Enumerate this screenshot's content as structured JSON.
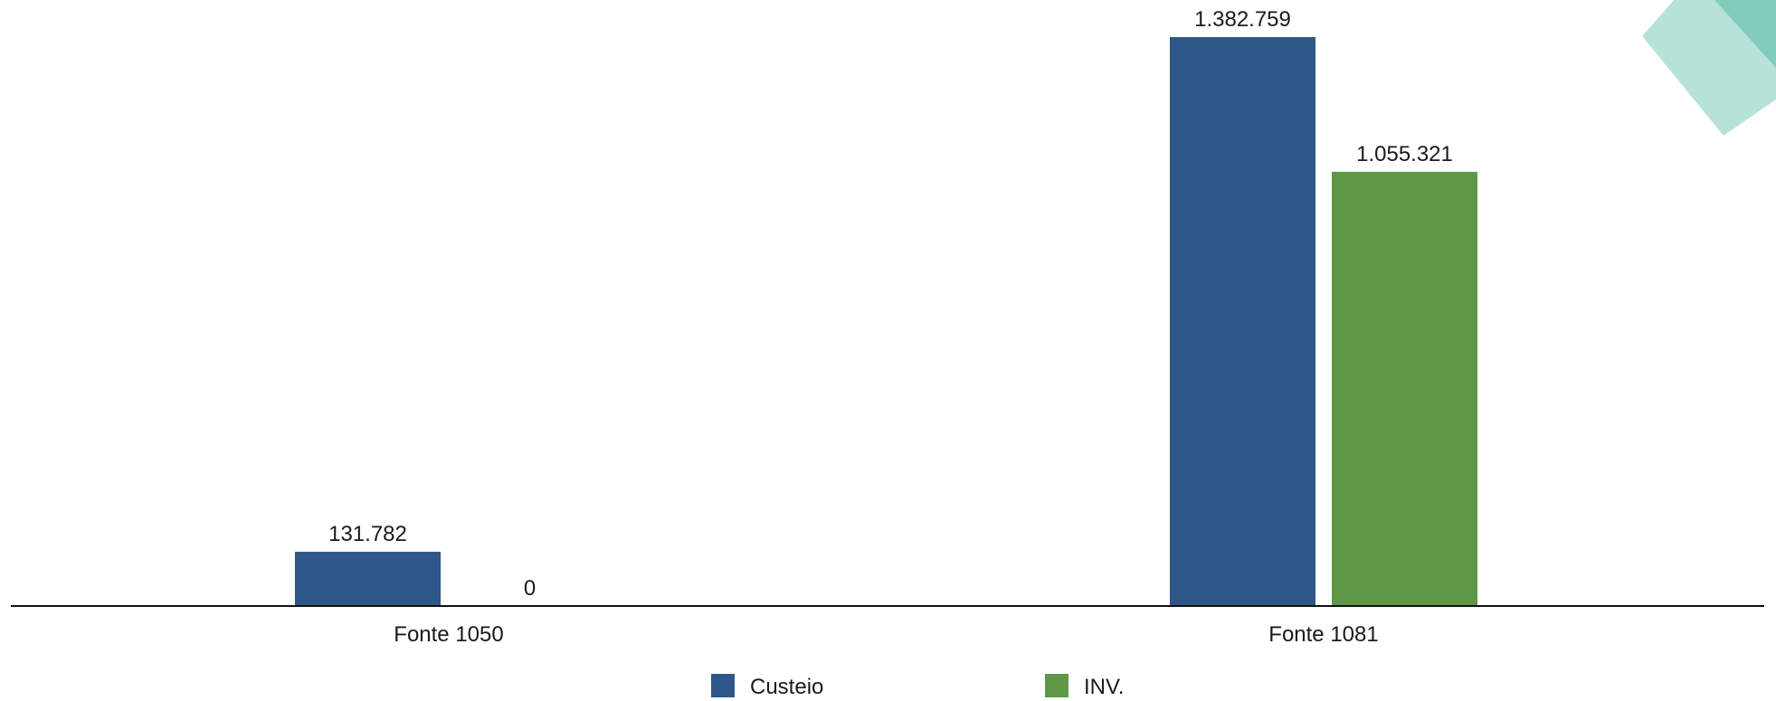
{
  "chart_data": {
    "type": "bar",
    "categories": [
      "Fonte 1050",
      "Fonte 1081"
    ],
    "series": [
      {
        "name": "Custeio",
        "values": [
          131782,
          1382759
        ],
        "labels": [
          "131.782",
          "1.382.759"
        ],
        "color": "#2e5688"
      },
      {
        "name": "INV.",
        "values": [
          0,
          1055321
        ],
        "labels": [
          "0",
          "1.055.321"
        ],
        "color": "#5e9746"
      }
    ],
    "ylim": [
      0,
      1382759
    ],
    "legend_position": "bottom",
    "grid": false,
    "decoration_color": "#a9ddd4"
  }
}
